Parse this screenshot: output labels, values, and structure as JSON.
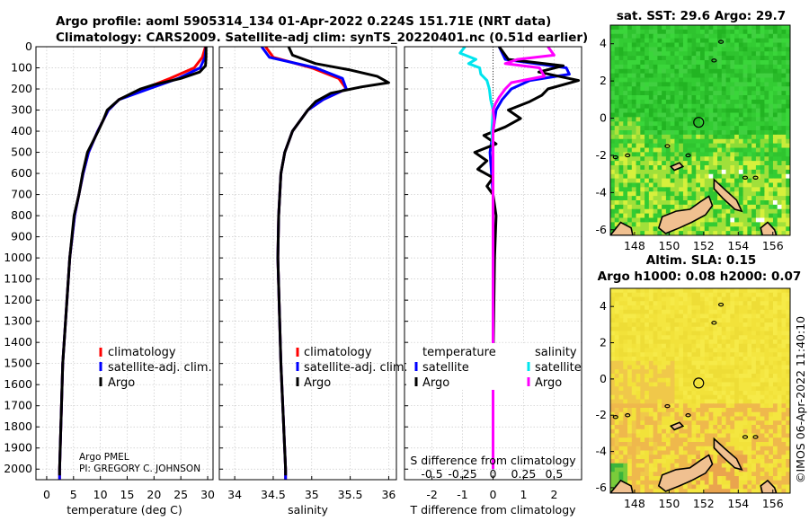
{
  "header": {
    "title_line1": "Argo profile: aoml 5905314_134 01-Apr-2022 0.224S 151.71E (NRT data)",
    "title_line2": "Climatology: CARS2009. Satellite-adj clim: synTS_20220401.nc (0.51d earlier)",
    "sst_title": "sat. SST: 29.6 Argo: 29.7",
    "sla_title1": "Altim. SLA: 0.15",
    "sla_title2": "Argo h1000: 0.08 h2000: 0.07",
    "side_label": "©IMOS 06-Apr-2022 11:40:10",
    "pi_line1": "Argo PMEL",
    "pi_line2": "PI: GREGORY C. JOHNSON"
  },
  "legends": {
    "climatology": "climatology",
    "satellite_adj": "satellite-adj. clim.",
    "argo": "Argo",
    "temperature_header": "temperature",
    "salinity_header": "salinity",
    "satellite": "satellite",
    "argo2": "Argo"
  },
  "colors": {
    "climatology": "#ff0000",
    "satellite_adj": "#0000ff",
    "argo": "#000000",
    "sal_satellite": "#00e5ee",
    "sal_argo": "#ff00ff",
    "land": "#f0c090"
  },
  "chart_data": [
    {
      "type": "line",
      "id": "temperature",
      "xlabel": "temperature (deg C)",
      "ylabel": "",
      "xlim": [
        -2,
        31
      ],
      "ylim": [
        2050,
        0
      ],
      "xticks": [
        0,
        5,
        10,
        15,
        20,
        25,
        30
      ],
      "yticks": [
        0,
        100,
        200,
        300,
        400,
        500,
        600,
        700,
        800,
        900,
        1000,
        1100,
        1200,
        1300,
        1400,
        1500,
        1600,
        1700,
        1800,
        1900,
        2000
      ],
      "series": [
        {
          "name": "climatology",
          "depth": [
            0,
            50,
            100,
            150,
            200,
            250,
            300,
            400,
            500,
            600,
            800,
            1000,
            1500,
            2000,
            2050
          ],
          "values": [
            29.6,
            29.0,
            27.5,
            23.0,
            18.0,
            13.5,
            11.5,
            9.5,
            7.8,
            6.8,
            5.2,
            4.3,
            3.0,
            2.4,
            2.4
          ]
        },
        {
          "name": "satellite-adj. clim.",
          "depth": [
            0,
            50,
            100,
            150,
            200,
            250,
            300,
            400,
            500,
            600,
            800,
            1000,
            1500,
            2000,
            2050
          ],
          "values": [
            29.7,
            29.5,
            28.6,
            24.5,
            19.0,
            13.5,
            11.5,
            9.5,
            7.8,
            6.8,
            5.2,
            4.3,
            3.0,
            2.4,
            2.4
          ]
        },
        {
          "name": "Argo",
          "depth": [
            0,
            50,
            90,
            120,
            150,
            180,
            200,
            250,
            300,
            350,
            400,
            500,
            600,
            700,
            800,
            1000,
            1500,
            2000,
            2030
          ],
          "values": [
            29.7,
            29.7,
            29.6,
            28.5,
            25.0,
            20.0,
            17.5,
            13.5,
            11.3,
            10.5,
            9.6,
            7.6,
            6.7,
            6.0,
            5.1,
            4.3,
            3.0,
            2.4,
            2.4
          ]
        }
      ]
    },
    {
      "type": "line",
      "id": "salinity",
      "xlabel": "salinity",
      "ylabel": "",
      "xlim": [
        33.8,
        36.1
      ],
      "ylim": [
        2050,
        0
      ],
      "xticks": [
        34,
        34.5,
        35,
        35.5,
        36
      ],
      "series": [
        {
          "name": "climatology",
          "depth": [
            0,
            50,
            100,
            150,
            200,
            250,
            300,
            400,
            500,
            600,
            800,
            1000,
            1500,
            2000,
            2050
          ],
          "values": [
            34.4,
            34.5,
            35.0,
            35.35,
            35.45,
            35.15,
            34.95,
            34.75,
            34.65,
            34.6,
            34.57,
            34.56,
            34.6,
            34.66,
            34.66
          ]
        },
        {
          "name": "satellite-adj. clim.",
          "depth": [
            0,
            50,
            100,
            150,
            200,
            250,
            300,
            400,
            500,
            600,
            800,
            1000,
            1500,
            2000,
            2050
          ],
          "values": [
            34.35,
            34.45,
            35.05,
            35.4,
            35.45,
            35.15,
            34.95,
            34.75,
            34.65,
            34.6,
            34.57,
            34.56,
            34.6,
            34.66,
            34.66
          ]
        },
        {
          "name": "Argo",
          "depth": [
            0,
            40,
            80,
            110,
            140,
            170,
            190,
            220,
            260,
            300,
            400,
            500,
            600,
            800,
            1000,
            1500,
            2000,
            2030
          ],
          "values": [
            34.7,
            34.75,
            35.05,
            35.5,
            35.85,
            36.0,
            35.65,
            35.25,
            35.05,
            34.95,
            34.75,
            34.65,
            34.6,
            34.57,
            34.56,
            34.6,
            34.66,
            34.66
          ]
        }
      ]
    },
    {
      "type": "line",
      "id": "difference",
      "xlabel": "T difference from climatology",
      "top_axis_label": "S difference from climatology",
      "xlim": [
        -2.9,
        2.9
      ],
      "ylim": [
        2050,
        0
      ],
      "xticks": [
        -2,
        -1,
        0,
        1,
        2
      ],
      "top_ticks": [
        -0.5,
        -0.25,
        0,
        0.25,
        0.5
      ],
      "top_tick_labels": [
        "-0.5",
        "-0.25",
        "0",
        "0.25",
        "0.5"
      ],
      "series": [
        {
          "name": "temperature satellite",
          "depth": [
            0,
            60,
            100,
            130,
            160,
            200,
            250,
            300,
            400,
            500,
            600,
            700,
            800,
            1000,
            1500,
            2000
          ],
          "values": [
            0.2,
            0.4,
            2.4,
            2.5,
            1.2,
            0.6,
            0.3,
            0.1,
            0.0,
            -0.1,
            -0.05,
            0.0,
            0.0,
            0.0,
            0.0,
            0.0
          ]
        },
        {
          "name": "temperature Argo",
          "depth": [
            0,
            60,
            90,
            120,
            160,
            200,
            230,
            260,
            300,
            340,
            380,
            420,
            460,
            500,
            540,
            580,
            620,
            660,
            700,
            800,
            1000,
            1500,
            2000
          ],
          "values": [
            0.2,
            0.5,
            2.3,
            1.5,
            2.8,
            1.8,
            1.6,
            1.2,
            0.5,
            0.9,
            0.4,
            -0.3,
            0.1,
            -0.6,
            -0.2,
            -0.5,
            0.0,
            -0.2,
            0.0,
            0.1,
            0.05,
            0.0,
            0.0
          ]
        },
        {
          "name": "salinity satellite",
          "depth": [
            0,
            30,
            60,
            80,
            100,
            130,
            160,
            200,
            250,
            300,
            400,
            500,
            700,
            1000,
            1500,
            2000
          ],
          "values": [
            -0.23,
            -0.27,
            -0.14,
            -0.2,
            -0.11,
            -0.1,
            -0.05,
            -0.03,
            -0.02,
            0.0,
            -0.01,
            0.0,
            0.0,
            0.0,
            0.0,
            0.0
          ]
        },
        {
          "name": "salinity Argo",
          "depth": [
            0,
            40,
            60,
            80,
            100,
            140,
            170,
            200,
            240,
            270,
            300,
            350,
            400,
            600,
            1000,
            1500,
            2000
          ],
          "values": [
            0.45,
            0.5,
            0.2,
            0.1,
            0.38,
            0.42,
            0.15,
            0.1,
            0.05,
            0.02,
            0.0,
            0.01,
            0.0,
            0.0,
            0.0,
            0.0,
            0.0
          ]
        }
      ]
    },
    {
      "type": "heatmap",
      "id": "sst_map",
      "title": "sat. SST: 29.6 Argo: 29.7",
      "x_ticks": [
        148,
        150,
        152,
        154,
        156
      ],
      "y_ticks": [
        4,
        2,
        0,
        -2,
        -4,
        -6
      ],
      "xlim": [
        146.6,
        157.0
      ],
      "ylim": [
        -6.3,
        5.0
      ],
      "argo_position": [
        151.71,
        -0.224
      ]
    },
    {
      "type": "heatmap",
      "id": "sla_map",
      "title": "Altim. SLA: 0.15",
      "x_ticks": [
        148,
        150,
        152,
        154,
        156
      ],
      "y_ticks": [
        4,
        2,
        0,
        -2,
        -4,
        -6
      ],
      "xlim": [
        146.6,
        157.0
      ],
      "ylim": [
        -6.3,
        5.0
      ],
      "argo_position": [
        151.71,
        -0.224
      ]
    }
  ]
}
